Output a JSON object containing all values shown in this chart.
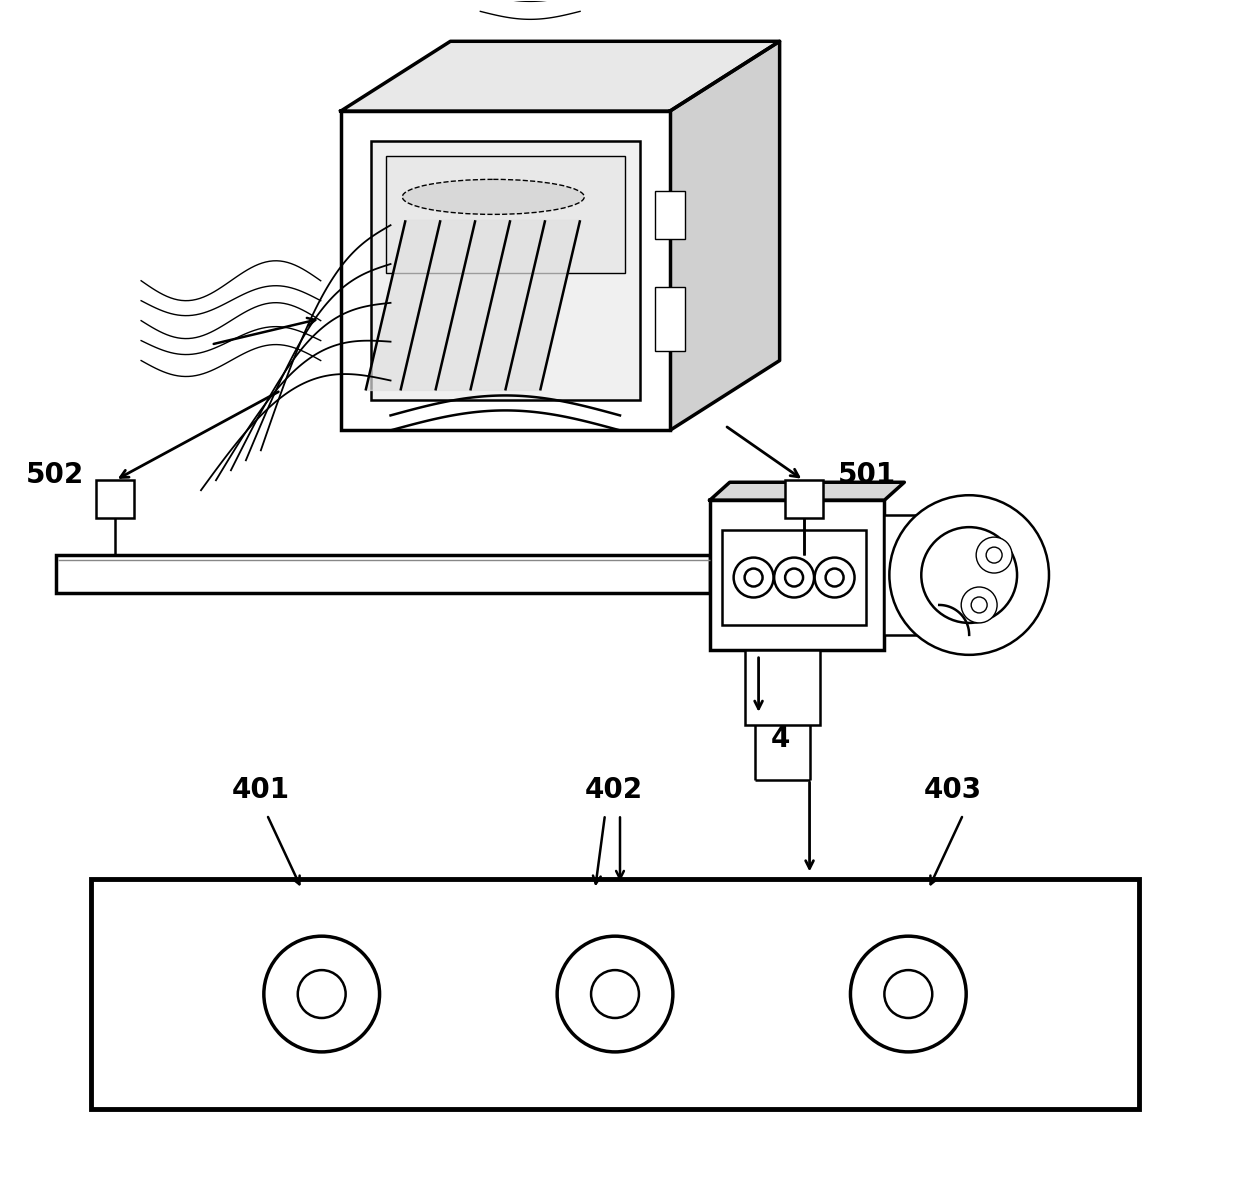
{
  "bg_color": "#ffffff",
  "line_color": "#000000",
  "fig_width": 12.4,
  "fig_height": 11.78
}
